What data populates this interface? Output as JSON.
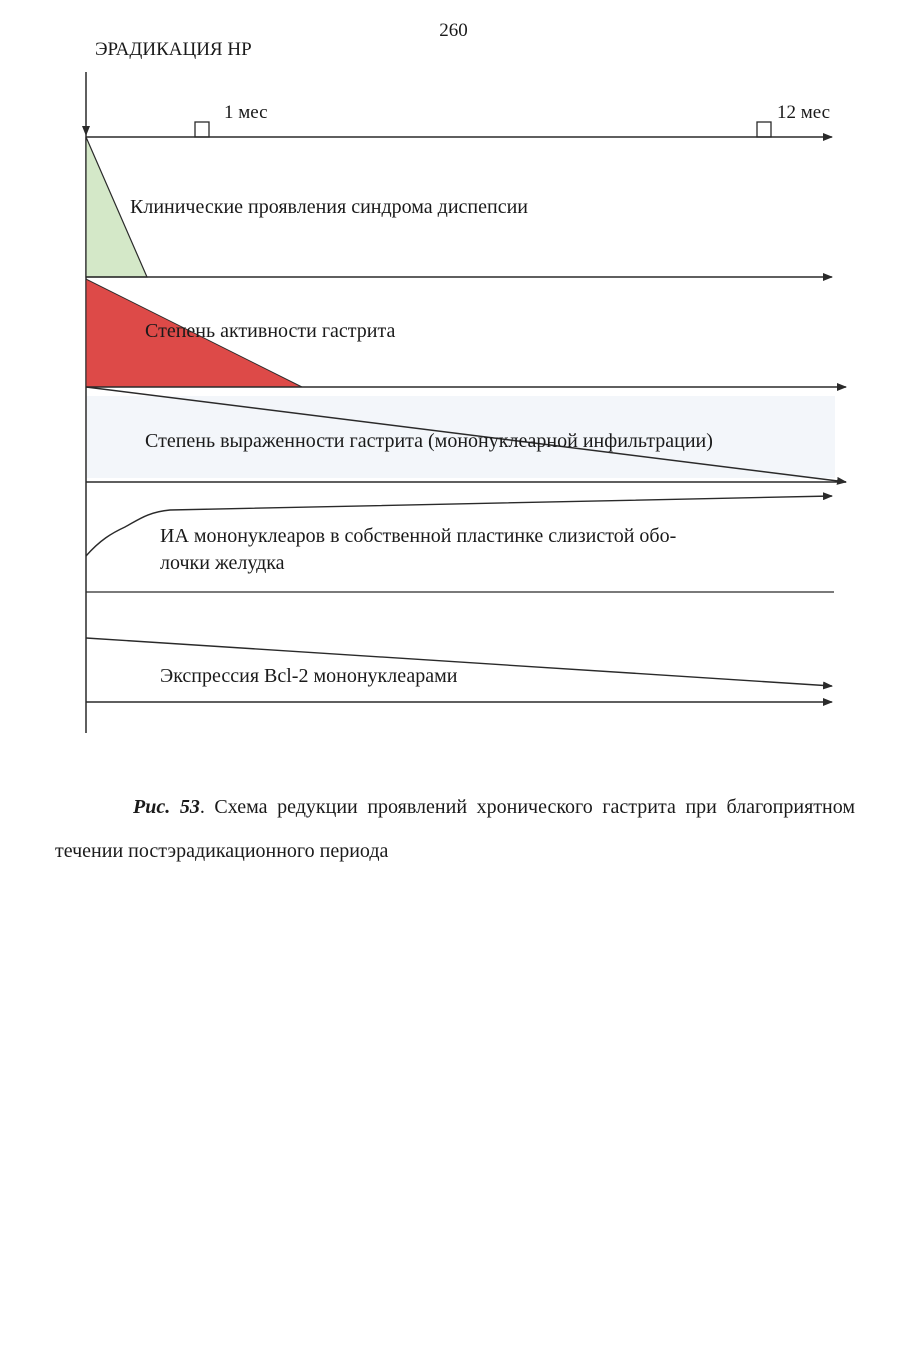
{
  "page_number": "260",
  "diagram": {
    "header_label": "ЭРАДИКАЦИЯ НР",
    "timeline_marks": [
      "1 мес",
      "12 мес"
    ],
    "rows": [
      "Клинические проявления синдрома диспепсии",
      "Степень активности гастрита",
      "Степень выраженности гастрита (мононуклеарной инфильтрации)",
      "ИА мононуклеаров в собственной пластинке слизистой обо-",
      "лочки желудка",
      "Экспрессия Bcl-2 мононуклеарами"
    ],
    "colors": {
      "dyspepsia_fill": "#d4e8c8",
      "activity_fill": "#dd4a48",
      "line": "#2a2a2a"
    }
  },
  "caption": {
    "figure_number": "Рис. 53",
    "text": ". Схема редукции проявлений хронического гастрита при благоприятном течении постэрадикационного периода"
  }
}
